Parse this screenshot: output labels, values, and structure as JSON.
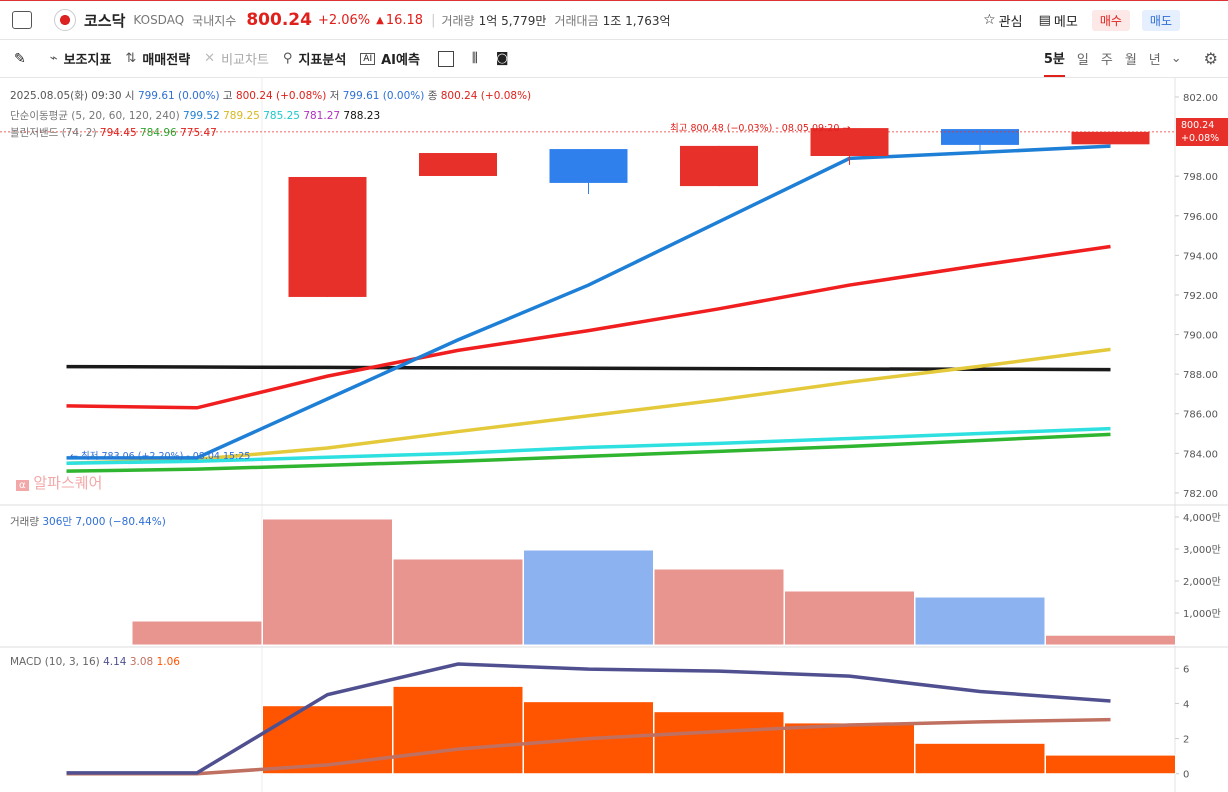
{
  "header": {
    "market": "코스닥",
    "code": "KOSDAQ",
    "index_type": "국내지수",
    "price": "800.24",
    "change_pct": "+2.06%",
    "change": "16.18",
    "volume_label": "거래량",
    "volume": "1억 5,779만",
    "amount_label": "거래대금",
    "amount": "1조 1,763억",
    "watch": "관심",
    "memo": "메모",
    "buy": "매수",
    "sell": "매도"
  },
  "toolbar": {
    "items": [
      "보조지표",
      "매매전략",
      "비교차트",
      "지표분석",
      "AI예측"
    ],
    "periods": [
      "5분",
      "일",
      "주",
      "월",
      "년"
    ]
  },
  "info": {
    "datetime": "2025.08.05(화) 09:30",
    "ohlc": [
      {
        "label": "시",
        "value": "799.61 (0.00%)"
      },
      {
        "label": "고",
        "value": "800.24 (+0.08%)"
      },
      {
        "label": "저",
        "value": "799.61 (0.00%)"
      },
      {
        "label": "종",
        "value": "800.24 (+0.08%)"
      }
    ],
    "ma_label": "단순이동평균 (5, 20, 60, 120, 240)",
    "ma_values": [
      "799.52",
      "789.25",
      "785.25",
      "781.27",
      "788.23"
    ],
    "bb_label": "볼린저밴드 (74, 2)",
    "bb_values": [
      "794.45",
      "784.96",
      "775.47"
    ],
    "high_note": "최고 800.48 (−0.03%) - 08.05 09:20 →",
    "low_note": "← 최저 783.06 (+2.20%) - 08.04 15:25",
    "watermark": "알파스퀘어",
    "price_tag": "800.24",
    "price_tag_pct": "+0.08%",
    "volume_legend": "거래량",
    "volume_legend_value": "306만 7,000 (−80.44%)",
    "macd_legend": "MACD (10, 3, 16)",
    "macd_values": [
      "4.14",
      "3.08",
      "1.06"
    ]
  },
  "chart_data": [
    {
      "type": "candlestick",
      "categories": [
        null,
        null,
        null,
        null,
        null,
        null,
        null,
        null,
        null
      ],
      "open": [
        null,
        null,
        791.9,
        798.01,
        799.37,
        797.5,
        799.02,
        800.38,
        799.61
      ],
      "high": [
        null,
        null,
        797.96,
        799.17,
        799.37,
        799.53,
        800.48,
        800.38,
        800.24
      ],
      "low": [
        null,
        null,
        791.9,
        798.01,
        797.1,
        797.5,
        798.57,
        799.12,
        799.61
      ],
      "close": [
        null,
        null,
        797.96,
        799.17,
        797.66,
        799.53,
        800.43,
        799.58,
        800.24
      ],
      "up_color": "#e8302a",
      "down_color": "#2f80ed",
      "lines": [
        {
          "color": "#1a1a1a",
          "values": [
            788.38,
            788.36,
            788.34,
            788.32,
            788.3,
            788.28,
            788.26,
            788.25,
            788.23
          ]
        },
        {
          "color": "#e4c93a",
          "values": [
            783.5,
            783.7,
            784.27,
            785.1,
            785.9,
            786.7,
            787.6,
            788.4,
            789.25
          ]
        },
        {
          "color": "#2ee0e0",
          "values": [
            783.5,
            783.6,
            783.8,
            784.0,
            784.3,
            784.5,
            784.75,
            785.0,
            785.25
          ]
        },
        {
          "color": "#2fb52f",
          "values": [
            783.1,
            783.2,
            783.4,
            783.6,
            783.85,
            784.1,
            784.35,
            784.65,
            784.96
          ]
        },
        {
          "color": "#f01e1e",
          "values": [
            786.4,
            786.3,
            787.9,
            789.2,
            790.2,
            791.3,
            792.5,
            793.5,
            794.45
          ]
        },
        {
          "color": "#1e7fd6",
          "values": [
            783.77,
            783.77,
            786.75,
            789.73,
            792.5,
            795.7,
            798.9,
            799.2,
            799.52
          ]
        }
      ],
      "ylim": [
        781.39,
        802.96
      ],
      "yticks": [
        {
          "value": 782,
          "label": "782.00"
        },
        {
          "value": 784,
          "label": "784.00"
        },
        {
          "value": 786,
          "label": "786.00"
        },
        {
          "value": 788,
          "label": "788.00"
        },
        {
          "value": 790,
          "label": "790.00"
        },
        {
          "value": 792,
          "label": "792.00"
        },
        {
          "value": 794,
          "label": "794.00"
        },
        {
          "value": 796,
          "label": "796.00"
        },
        {
          "value": 798,
          "label": "798.00"
        },
        {
          "value": 802,
          "label": "802.00"
        }
      ]
    },
    {
      "type": "bar",
      "categories": [
        null,
        null,
        null,
        null,
        null,
        null,
        null,
        null,
        null
      ],
      "values": [
        null,
        750,
        3938,
        2688,
        2969,
        2375,
        1688,
        1500,
        306
      ],
      "colors": [
        "#e8948f",
        "#e8948f",
        "#e8948f",
        "#e8948f",
        "#8cb3f0",
        "#e8948f",
        "#e8948f",
        "#8cb3f0",
        "#e8948f"
      ],
      "ylim": [
        -62,
        4375
      ],
      "yticks": [
        {
          "value": 1000,
          "label": "1,000만"
        },
        {
          "value": 2000,
          "label": "2,000만"
        },
        {
          "value": 3000,
          "label": "3,000만"
        },
        {
          "value": 4000,
          "label": "4,000만"
        }
      ]
    },
    {
      "type": "macd",
      "categories": [
        null,
        null,
        null,
        null,
        null,
        null,
        null,
        null,
        null
      ],
      "values": [
        null,
        null,
        3.87,
        4.97,
        4.1,
        3.53,
        2.89,
        1.73,
        1.06
      ],
      "color": "#ff5500",
      "lines": [
        {
          "color": "#c07060",
          "values": [
            0.0,
            0.0,
            0.5,
            1.4,
            2.0,
            2.4,
            2.77,
            2.95,
            3.08
          ]
        },
        {
          "color": "#505090",
          "values": [
            0.05,
            0.05,
            4.5,
            6.24,
            5.95,
            5.84,
            5.55,
            4.68,
            4.14
          ]
        }
      ],
      "ylim": [
        -1.04,
        7.21
      ],
      "yticks": [
        0,
        2,
        4,
        6
      ]
    }
  ]
}
